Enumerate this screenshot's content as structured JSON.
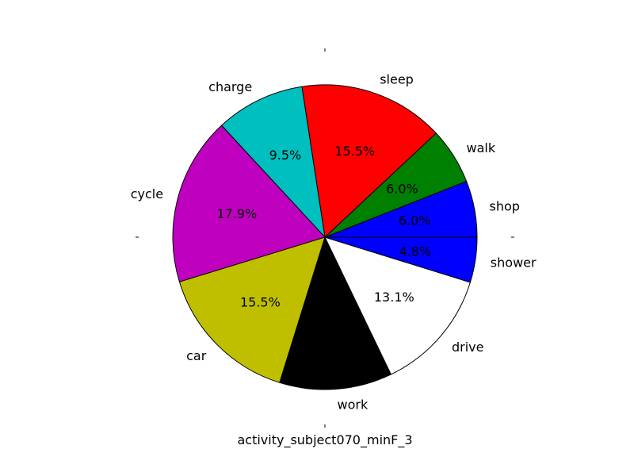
{
  "chart_data": {
    "type": "pie",
    "title": "",
    "xlabel": "activity_subject070_minF_3",
    "ylabel": "",
    "start_angle": "0 (3 o'clock), counter-clockwise",
    "slices": [
      {
        "label": "shop",
        "value": 6.0,
        "pct_label": "6.0%",
        "color": "#0000ff"
      },
      {
        "label": "walk",
        "value": 6.0,
        "pct_label": "6.0%",
        "color": "#008000"
      },
      {
        "label": "sleep",
        "value": 15.5,
        "pct_label": "15.5%",
        "color": "#ff0000"
      },
      {
        "label": "charge",
        "value": 9.5,
        "pct_label": "9.5%",
        "color": "#00bfbf"
      },
      {
        "label": "cycle",
        "value": 17.9,
        "pct_label": "17.9%",
        "color": "#bf00bf"
      },
      {
        "label": "car",
        "value": 15.5,
        "pct_label": "15.5%",
        "color": "#bfbf00"
      },
      {
        "label": "work",
        "value": 12.0,
        "pct_label": "",
        "color": "#000000"
      },
      {
        "label": "drive",
        "value": 13.1,
        "pct_label": "13.1%",
        "color": "#ffffff"
      },
      {
        "label": "shower",
        "value": 4.8,
        "pct_label": "4.8%",
        "color": "#0000ff"
      }
    ]
  }
}
